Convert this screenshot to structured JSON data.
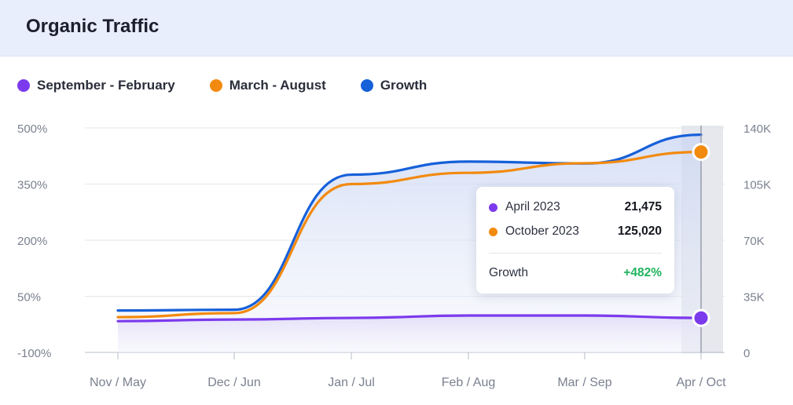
{
  "header": {
    "title": "Organic Traffic"
  },
  "colors": {
    "september_february": "#7c3aed",
    "march_august": "#f28a0f",
    "growth": "#1660d9",
    "growth_positive": "#22b35e"
  },
  "chart_data": {
    "type": "line",
    "categories": [
      "Nov / May",
      "Dec / Jun",
      "Jan / Jul",
      "Feb / Aug",
      "Mar / Sep",
      "Apr / Oct"
    ],
    "y_left": {
      "ticks": [
        "500%",
        "350%",
        "200%",
        "50%",
        "-100%"
      ],
      "range": [
        -100,
        500
      ]
    },
    "y_right": {
      "ticks": [
        "140K",
        "105K",
        "70K",
        "35K",
        "0"
      ],
      "range": [
        0,
        140000
      ]
    },
    "legend_position": "top-left",
    "grid": true,
    "series": [
      {
        "name": "September - February",
        "axis": "right",
        "color": "#7c3aed",
        "values": [
          19500,
          20500,
          21500,
          23000,
          23000,
          21475
        ]
      },
      {
        "name": "March - August",
        "axis": "right",
        "color": "#f28a0f",
        "values": [
          22000,
          24500,
          105000,
          112000,
          118000,
          125020
        ]
      },
      {
        "name": "Growth",
        "axis": "left",
        "color": "#1660d9",
        "values": [
          12,
          14,
          375,
          410,
          405,
          482
        ]
      }
    ],
    "highlight_category": "Apr / Oct"
  },
  "legend": [
    {
      "label": "September - February",
      "color": "#7c3aed"
    },
    {
      "label": "March - August",
      "color": "#f28a0f"
    },
    {
      "label": "Growth",
      "color": "#1660d9"
    }
  ],
  "tooltip": {
    "rows": [
      {
        "label": "April 2023",
        "value": "21,475",
        "color": "#7c3aed"
      },
      {
        "label": "October 2023",
        "value": "125,020",
        "color": "#f28a0f"
      }
    ],
    "growth_label": "Growth",
    "growth_value": "+482%"
  }
}
